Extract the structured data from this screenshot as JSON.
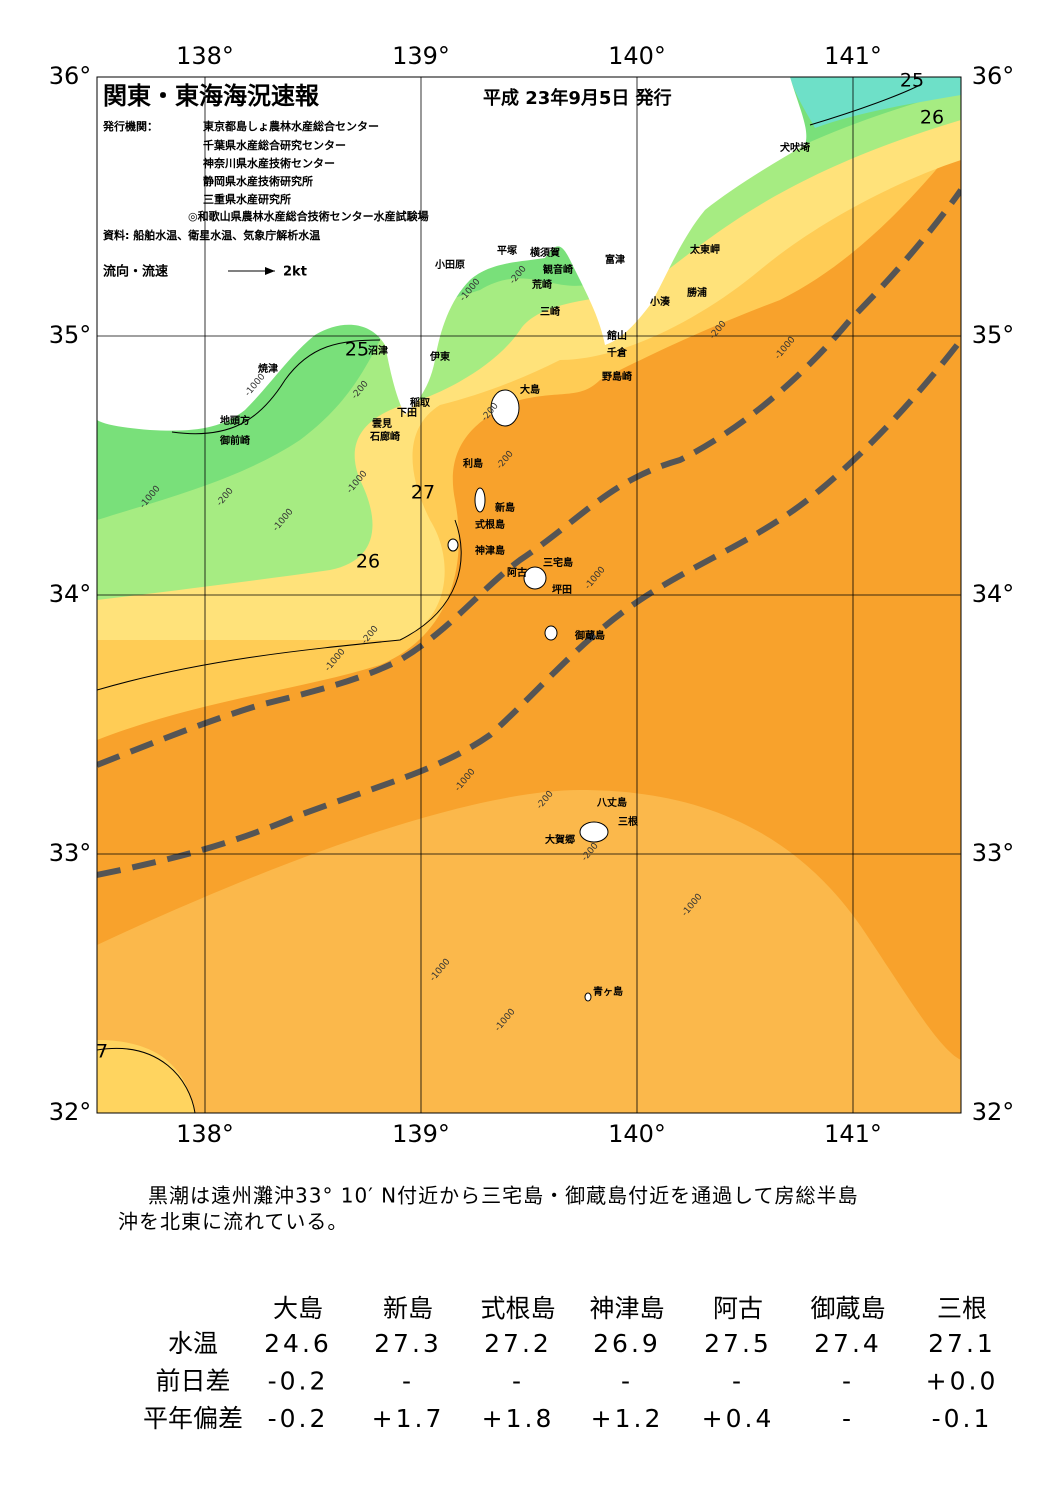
{
  "header": {
    "title": "関東・東海海況速報",
    "date": "平成 23年9月5日 発行",
    "issuer_label": "発行機関：",
    "issuers": [
      "東京都島しょ農林水産総合センター",
      "千葉県水産総合研究センター",
      "神奈川県水産技術センター",
      "静岡県水産技術研究所",
      "三重県水産研究所",
      "◎和歌山県農林水産総合技術センター水産試験場"
    ],
    "sources": "資料: 船舶水温、衛星水温、気象庁解析水温",
    "legend_label": "流向・流速",
    "legend_scale": "2kt"
  },
  "map": {
    "lon_ticks": [
      {
        "value": 138,
        "label": "138°"
      },
      {
        "value": 139,
        "label": "139°"
      },
      {
        "value": 140,
        "label": "140°"
      },
      {
        "value": 141,
        "label": "141°"
      }
    ],
    "lat_ticks": [
      {
        "value": 36,
        "label": "36°"
      },
      {
        "value": 35,
        "label": "35°"
      },
      {
        "value": 34,
        "label": "34°"
      },
      {
        "value": 33,
        "label": "33°"
      },
      {
        "value": 32,
        "label": "32°"
      }
    ],
    "places": [
      "犬吠埼",
      "太東岬",
      "勝浦",
      "小湊",
      "館山",
      "千倉",
      "野島崎",
      "富津",
      "観音崎",
      "横須賀",
      "荒崎",
      "三崎",
      "平塚",
      "小田原",
      "伊東",
      "稲取",
      "下田",
      "雲見",
      "石廊崎",
      "沼津",
      "焼津",
      "地頭方",
      "御前崎",
      "大島",
      "利島",
      "新島",
      "式根島",
      "神津島",
      "三宅島",
      "阿古",
      "坪田",
      "御蔵島",
      "八丈島",
      "三根",
      "大賀郷",
      "青ヶ島"
    ],
    "contour_labels": [
      "25",
      "26",
      "25",
      "27",
      "26",
      "7"
    ],
    "depth_labels": [
      "-200",
      "-200",
      "-200",
      "-200",
      "-200",
      "-200",
      "-200",
      "-200",
      "-200",
      "-1000",
      "-1000",
      "-1000",
      "-1000",
      "-1000",
      "-1000",
      "-1000",
      "-1000",
      "-1000",
      "-1000",
      "-1000",
      "-1000"
    ]
  },
  "description": [
    "黒潮は遠州灘沖33° 10′ N付近から三宅島・御蔵島付近を通過して房総半島",
    "沖を北東に流れている。"
  ],
  "table": {
    "columns": [
      "大島",
      "新島",
      "式根島",
      "神津島",
      "阿古",
      "御蔵島",
      "三根"
    ],
    "rows": [
      {
        "label": "水温",
        "values": [
          "24.6",
          "27.3",
          "27.2",
          "26.9",
          "27.5",
          "27.4",
          "27.1"
        ]
      },
      {
        "label": "前日差",
        "values": [
          "-0.2",
          "-",
          "-",
          "-",
          "-",
          "-",
          "+0.0"
        ]
      },
      {
        "label": "平年偏差",
        "values": [
          "-0.2",
          "+1.7",
          "+1.8",
          "+1.2",
          "+0.4",
          "-",
          "-0.1"
        ]
      }
    ]
  }
}
